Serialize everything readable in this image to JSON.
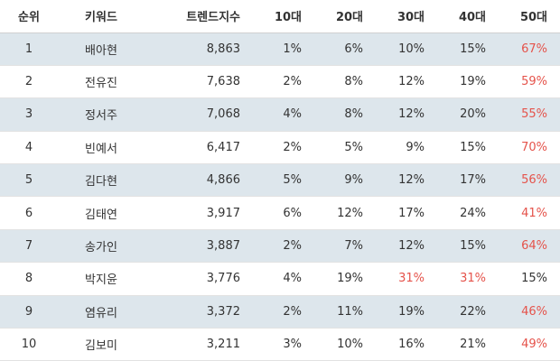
{
  "colors": {
    "highlight": "#e5534b",
    "row_alt": "#dde6ec",
    "text": "#333333"
  },
  "table": {
    "headers": [
      "순위",
      "키워드",
      "트렌드지수",
      "10대",
      "20대",
      "30대",
      "40대",
      "50대"
    ],
    "rows": [
      {
        "rank": "1",
        "keyword": "배아현",
        "trend": "8,863",
        "a10": "1%",
        "a20": "6%",
        "a30": "10%",
        "a40": "15%",
        "a50": "67%"
      },
      {
        "rank": "2",
        "keyword": "전유진",
        "trend": "7,638",
        "a10": "2%",
        "a20": "8%",
        "a30": "12%",
        "a40": "19%",
        "a50": "59%"
      },
      {
        "rank": "3",
        "keyword": "정서주",
        "trend": "7,068",
        "a10": "4%",
        "a20": "8%",
        "a30": "12%",
        "a40": "20%",
        "a50": "55%"
      },
      {
        "rank": "4",
        "keyword": "빈예서",
        "trend": "6,417",
        "a10": "2%",
        "a20": "5%",
        "a30": "9%",
        "a40": "15%",
        "a50": "70%"
      },
      {
        "rank": "5",
        "keyword": "김다현",
        "trend": "4,866",
        "a10": "5%",
        "a20": "9%",
        "a30": "12%",
        "a40": "17%",
        "a50": "56%"
      },
      {
        "rank": "6",
        "keyword": "김태연",
        "trend": "3,917",
        "a10": "6%",
        "a20": "12%",
        "a30": "17%",
        "a40": "24%",
        "a50": "41%"
      },
      {
        "rank": "7",
        "keyword": "송가인",
        "trend": "3,887",
        "a10": "2%",
        "a20": "7%",
        "a30": "12%",
        "a40": "15%",
        "a50": "64%"
      },
      {
        "rank": "8",
        "keyword": "박지윤",
        "trend": "3,776",
        "a10": "4%",
        "a20": "19%",
        "a30": "31%",
        "a40": "31%",
        "a50": "15%"
      },
      {
        "rank": "9",
        "keyword": "염유리",
        "trend": "3,372",
        "a10": "2%",
        "a20": "11%",
        "a30": "19%",
        "a40": "22%",
        "a50": "46%"
      },
      {
        "rank": "10",
        "keyword": "김보미",
        "trend": "3,211",
        "a10": "3%",
        "a20": "10%",
        "a30": "16%",
        "a40": "21%",
        "a50": "49%"
      }
    ]
  }
}
